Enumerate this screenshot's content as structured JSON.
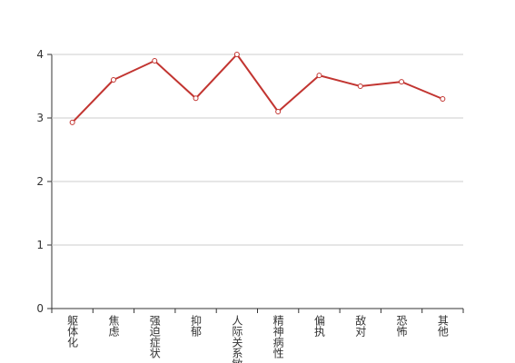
{
  "chart_data": {
    "type": "line",
    "categories": [
      "躯体化",
      "焦虑",
      "强迫症状",
      "抑郁",
      "人际关系敏感",
      "精神病性",
      "偏执",
      "敌对",
      "恐怖",
      "其他"
    ],
    "values": [
      2.93,
      3.6,
      3.9,
      3.31,
      4.0,
      3.1,
      3.67,
      3.5,
      3.57,
      3.3
    ],
    "color": "#c23531",
    "ylim": [
      0,
      4
    ],
    "yticks": [
      0,
      1,
      2,
      3,
      4
    ],
    "grid": true
  }
}
